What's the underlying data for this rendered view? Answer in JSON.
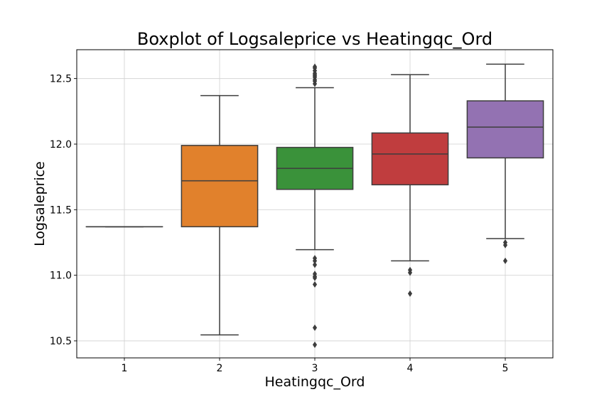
{
  "chart_data": {
    "type": "box",
    "title": "Boxplot of Logsaleprice vs Heatingqc_Ord",
    "xlabel": "Heatingqc_Ord",
    "ylabel": "Logsaleprice",
    "ylim": [
      10.37,
      12.72
    ],
    "yticks": [
      "10.5",
      "11.0",
      "11.5",
      "12.0",
      "12.5"
    ],
    "grid": true,
    "categories": [
      "1",
      "2",
      "3",
      "4",
      "5"
    ],
    "boxes": [
      {
        "category": "1",
        "whisker_low": 11.37,
        "q1": 11.37,
        "median": 11.37,
        "q3": 11.37,
        "whisker_high": 11.37,
        "outliers": [],
        "color": "#1f77b4"
      },
      {
        "category": "2",
        "whisker_low": 10.545,
        "q1": 11.37,
        "median": 11.72,
        "q3": 11.99,
        "whisker_high": 12.37,
        "outliers": [],
        "color": "#e1812c"
      },
      {
        "category": "3",
        "whisker_low": 11.195,
        "q1": 11.655,
        "median": 11.815,
        "q3": 11.975,
        "whisker_high": 12.43,
        "outliers": [
          11.13,
          11.11,
          11.08,
          11.01,
          10.99,
          10.98,
          10.93,
          10.6,
          10.47,
          12.46,
          12.48,
          12.49,
          12.51,
          12.52,
          12.53,
          12.54,
          12.56,
          12.58,
          12.59
        ],
        "color": "#3a923a"
      },
      {
        "category": "4",
        "whisker_low": 11.11,
        "q1": 11.69,
        "median": 11.925,
        "q3": 12.085,
        "whisker_high": 12.53,
        "outliers": [
          11.04,
          11.02,
          10.86
        ],
        "color": "#c03d3e"
      },
      {
        "category": "5",
        "whisker_low": 11.28,
        "q1": 11.895,
        "median": 12.13,
        "q3": 12.33,
        "whisker_high": 12.61,
        "outliers": [
          11.25,
          11.23,
          11.11
        ],
        "color": "#9372b2"
      }
    ]
  }
}
